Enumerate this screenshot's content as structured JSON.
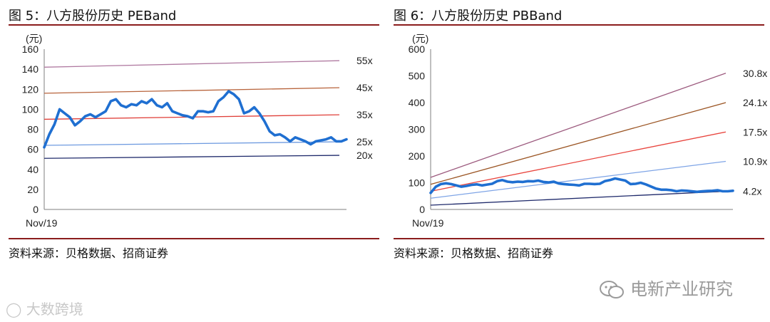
{
  "panels": [
    {
      "title": "图 5：八方股份历史 PEBand",
      "source": "资料来源：贝格数据、招商证券",
      "unit_label": "(元)",
      "start_label": "Nov/19"
    },
    {
      "title": "图 6：八方股份历史 PBBand",
      "source": "资料来源：贝格数据、招商证券",
      "unit_label": "(元)",
      "start_label": "Nov/19"
    }
  ],
  "watermark": {
    "right": "电新产业研究",
    "left": "大数跨境"
  },
  "chart_data": [
    {
      "type": "line",
      "title": "图 5：八方股份历史 PEBand",
      "ylabel": "(元)",
      "ylim": [
        0,
        160
      ],
      "yticks": [
        0,
        20,
        40,
        60,
        80,
        100,
        120,
        140,
        160
      ],
      "x_start_label": "Nov/19",
      "n_points": 60,
      "bands": [
        {
          "name": "55x",
          "start": 142,
          "end": 148.5,
          "color": "#b07aa1"
        },
        {
          "name": "45x",
          "start": 116,
          "end": 121.5,
          "color": "#b8643c"
        },
        {
          "name": "35x",
          "start": 90,
          "end": 94.5,
          "color": "#e0403a"
        },
        {
          "name": "25x",
          "start": 64,
          "end": 67.5,
          "color": "#6f9be0"
        },
        {
          "name": "20x",
          "start": 51,
          "end": 54,
          "color": "#1f2a6b"
        }
      ],
      "price": {
        "color": "#1f6fd1",
        "values": [
          62,
          75,
          85,
          100,
          96,
          92,
          84,
          88,
          93,
          95,
          92,
          95,
          98,
          108,
          110,
          104,
          102,
          105,
          104,
          108,
          106,
          110,
          104,
          102,
          106,
          98,
          96,
          94,
          93,
          91,
          98,
          98,
          97,
          98,
          108,
          112,
          118,
          115,
          110,
          96,
          98,
          102,
          96,
          88,
          78,
          74,
          75,
          72,
          68,
          72,
          70,
          68,
          65,
          68,
          69,
          70,
          72,
          68,
          68,
          70
        ]
      }
    },
    {
      "type": "line",
      "title": "图 6：八方股份历史 PBBand",
      "ylabel": "(元)",
      "ylim": [
        0,
        600
      ],
      "yticks": [
        0,
        100,
        200,
        300,
        400,
        500,
        600
      ],
      "x_start_label": "Nov/19",
      "n_points": 60,
      "bands": [
        {
          "name": "30.8x",
          "start": 120,
          "end": 510,
          "color": "#9c5a7e"
        },
        {
          "name": "24.1x",
          "start": 94,
          "end": 400,
          "color": "#9b5524"
        },
        {
          "name": "17.5x",
          "start": 68,
          "end": 290,
          "color": "#e8443d"
        },
        {
          "name": "10.9x",
          "start": 42,
          "end": 180,
          "color": "#7ea4e6"
        },
        {
          "name": "4.2x",
          "start": 16,
          "end": 68,
          "color": "#1f2a6b"
        }
      ],
      "price": {
        "color": "#1f6fd1",
        "values": [
          62,
          85,
          95,
          98,
          95,
          90,
          85,
          88,
          92,
          94,
          90,
          93,
          96,
          106,
          110,
          104,
          102,
          104,
          103,
          106,
          105,
          108,
          103,
          101,
          104,
          97,
          95,
          93,
          92,
          90,
          96,
          96,
          95,
          96,
          106,
          110,
          116,
          112,
          108,
          95,
          96,
          100,
          94,
          86,
          78,
          74,
          74,
          72,
          68,
          71,
          70,
          68,
          66,
          68,
          69,
          70,
          72,
          68,
          68,
          70
        ]
      }
    }
  ]
}
